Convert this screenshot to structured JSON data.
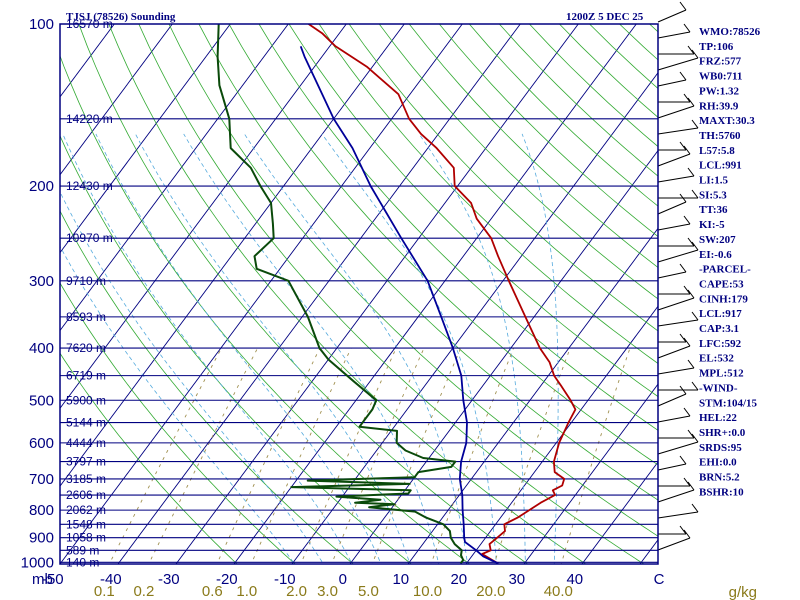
{
  "header": {
    "station": "TJSJ (78526) Sounding",
    "time": "1200Z  5 DEC 25"
  },
  "chart_data": {
    "type": "line",
    "chart_kind": "Skew-T log-P",
    "pressure_unit": "mb",
    "mixing_ratio_unit": "g/kg",
    "pressure_levels": [
      100,
      200,
      300,
      400,
      500,
      600,
      700,
      800,
      900,
      1000
    ],
    "temperature_ticks": [
      -50,
      -40,
      -30,
      -20,
      -10,
      0,
      10,
      20,
      30,
      40
    ],
    "temperature_end_label": "C",
    "mixing_ratio_ticks": [
      "0.1",
      "0.2",
      "0.6",
      "1.0",
      "2.0",
      "3.0",
      "5.0",
      "10.0",
      "20.0",
      "40.0"
    ],
    "height_labels": [
      {
        "p": 100,
        "label": "16570 m"
      },
      {
        "p": 150,
        "label": "14220 m"
      },
      {
        "p": 200,
        "label": "12430 m"
      },
      {
        "p": 250,
        "label": "10970 m"
      },
      {
        "p": 300,
        "label": "9710 m"
      },
      {
        "p": 350,
        "label": "8593 m"
      },
      {
        "p": 400,
        "label": "7620 m"
      },
      {
        "p": 450,
        "label": "6719 m"
      },
      {
        "p": 500,
        "label": "5900 m"
      },
      {
        "p": 550,
        "label": "5144 m"
      },
      {
        "p": 600,
        "label": "4444 m"
      },
      {
        "p": 650,
        "label": "3797 m"
      },
      {
        "p": 700,
        "label": "3185 m"
      },
      {
        "p": 750,
        "label": "2606 m"
      },
      {
        "p": 800,
        "label": "2062 m"
      },
      {
        "p": 850,
        "label": "1548 m"
      },
      {
        "p": 900,
        "label": "1058 m"
      },
      {
        "p": 950,
        "label": "589 m"
      },
      {
        "p": 1000,
        "label": "140 m"
      }
    ],
    "series": [
      {
        "role": "temperature",
        "color": "#b00000",
        "points": [
          {
            "p": 1005,
            "t": 25.5
          },
          {
            "p": 990,
            "t": 24.0
          },
          {
            "p": 965,
            "t": 21.5
          },
          {
            "p": 950,
            "t": 22.5
          },
          {
            "p": 925,
            "t": 21.5
          },
          {
            "p": 900,
            "t": 22.0
          },
          {
            "p": 875,
            "t": 22.5
          },
          {
            "p": 850,
            "t": 21.5
          },
          {
            "p": 825,
            "t": 23.0
          },
          {
            "p": 800,
            "t": 24.0
          },
          {
            "p": 775,
            "t": 25.0
          },
          {
            "p": 750,
            "t": 26.5
          },
          {
            "p": 735,
            "t": 25.5
          },
          {
            "p": 720,
            "t": 26.5
          },
          {
            "p": 700,
            "t": 26.0
          },
          {
            "p": 680,
            "t": 23.5
          },
          {
            "p": 650,
            "t": 22.0
          },
          {
            "p": 600,
            "t": 20.5
          },
          {
            "p": 550,
            "t": 19.5
          },
          {
            "p": 520,
            "t": 19.0
          },
          {
            "p": 500,
            "t": 17.0
          },
          {
            "p": 470,
            "t": 13.5
          },
          {
            "p": 450,
            "t": 11.0
          },
          {
            "p": 425,
            "t": 8.5
          },
          {
            "p": 400,
            "t": 5.0
          },
          {
            "p": 350,
            "t": -1.5
          },
          {
            "p": 300,
            "t": -9.0
          },
          {
            "p": 270,
            "t": -14.0
          },
          {
            "p": 250,
            "t": -17.5
          },
          {
            "p": 230,
            "t": -22.5
          },
          {
            "p": 215,
            "t": -25.5
          },
          {
            "p": 200,
            "t": -30.5
          },
          {
            "p": 185,
            "t": -33.0
          },
          {
            "p": 170,
            "t": -38.5
          },
          {
            "p": 160,
            "t": -43.0
          },
          {
            "p": 150,
            "t": -47.0
          },
          {
            "p": 135,
            "t": -52.0
          },
          {
            "p": 120,
            "t": -61.0
          },
          {
            "p": 110,
            "t": -69.0
          },
          {
            "p": 104,
            "t": -73.0
          },
          {
            "p": 100,
            "t": -76.5
          }
        ]
      },
      {
        "role": "dewpoint",
        "color": "#0a4a0a",
        "points": [
          {
            "p": 1005,
            "t": 19.0
          },
          {
            "p": 990,
            "t": 19.0
          },
          {
            "p": 970,
            "t": 18.0
          },
          {
            "p": 950,
            "t": 17.5
          },
          {
            "p": 925,
            "t": 15.5
          },
          {
            "p": 900,
            "t": 14.0
          },
          {
            "p": 875,
            "t": 13.0
          },
          {
            "p": 850,
            "t": 11.0
          },
          {
            "p": 825,
            "t": 7.0
          },
          {
            "p": 805,
            "t": 4.5
          },
          {
            "p": 790,
            "t": -4.0
          },
          {
            "p": 780,
            "t": 0.0
          },
          {
            "p": 775,
            "t": -7.0
          },
          {
            "p": 765,
            "t": -3.0
          },
          {
            "p": 755,
            "t": -11.0
          },
          {
            "p": 745,
            "t": 1.0
          },
          {
            "p": 735,
            "t": 1.0
          },
          {
            "p": 725,
            "t": -20.0
          },
          {
            "p": 715,
            "t": 0.0
          },
          {
            "p": 705,
            "t": -18.0
          },
          {
            "p": 695,
            "t": 0.0
          },
          {
            "p": 680,
            "t": 0.0
          },
          {
            "p": 665,
            "t": 5.0
          },
          {
            "p": 650,
            "t": 5.0
          },
          {
            "p": 640,
            "t": -1.0
          },
          {
            "p": 620,
            "t": -5.0
          },
          {
            "p": 600,
            "t": -7.5
          },
          {
            "p": 570,
            "t": -9.0
          },
          {
            "p": 560,
            "t": -16.0
          },
          {
            "p": 520,
            "t": -16.0
          },
          {
            "p": 500,
            "t": -16.5
          },
          {
            "p": 460,
            "t": -23.0
          },
          {
            "p": 420,
            "t": -30.0
          },
          {
            "p": 400,
            "t": -33.0
          },
          {
            "p": 350,
            "t": -39.0
          },
          {
            "p": 300,
            "t": -47.0
          },
          {
            "p": 285,
            "t": -54.0
          },
          {
            "p": 270,
            "t": -56.0
          },
          {
            "p": 250,
            "t": -55.0
          },
          {
            "p": 235,
            "t": -57.0
          },
          {
            "p": 215,
            "t": -60.0
          },
          {
            "p": 200,
            "t": -64.0
          },
          {
            "p": 185,
            "t": -68.0
          },
          {
            "p": 170,
            "t": -74.0
          },
          {
            "p": 150,
            "t": -78.0
          },
          {
            "p": 130,
            "t": -84.0
          },
          {
            "p": 115,
            "t": -88.0
          },
          {
            "p": 100,
            "t": -92.0
          }
        ]
      },
      {
        "role": "parcel",
        "color": "#000099",
        "points": [
          {
            "p": 1005,
            "t": 25.5
          },
          {
            "p": 975,
            "t": 22.0
          },
          {
            "p": 950,
            "t": 20.0
          },
          {
            "p": 917,
            "t": 17.0
          },
          {
            "p": 900,
            "t": 16.3
          },
          {
            "p": 850,
            "t": 14.5
          },
          {
            "p": 800,
            "t": 12.5
          },
          {
            "p": 750,
            "t": 10.5
          },
          {
            "p": 700,
            "t": 8.0
          },
          {
            "p": 650,
            "t": 6.0
          },
          {
            "p": 600,
            "t": 4.5
          },
          {
            "p": 550,
            "t": 2.0
          },
          {
            "p": 500,
            "t": -1.5
          },
          {
            "p": 450,
            "t": -5.0
          },
          {
            "p": 400,
            "t": -10.0
          },
          {
            "p": 350,
            "t": -16.0
          },
          {
            "p": 300,
            "t": -23.0
          },
          {
            "p": 250,
            "t": -33.0
          },
          {
            "p": 200,
            "t": -45.0
          },
          {
            "p": 170,
            "t": -53.0
          },
          {
            "p": 150,
            "t": -60.0
          },
          {
            "p": 130,
            "t": -67.0
          },
          {
            "p": 115,
            "t": -73.0
          },
          {
            "p": 110,
            "t": -75.0
          }
        ]
      }
    ],
    "indices": [
      "WMO:78526",
      "TP:106",
      "FRZ:577",
      "WB0:711",
      "PW:1.32",
      "RH:39.9",
      "MAXT:30.3",
      "TH:5760",
      "L57:5.8",
      "LCL:991",
      "LI:1.5",
      "SI:5.3",
      "TT:36",
      "KI:-5",
      "SW:207",
      "EI:-0.6",
      "-PARCEL-",
      "CAPE:53",
      "CINH:179",
      "LCL:917",
      "CAP:3.1",
      "LFC:592",
      "EL:532",
      "MPL:512",
      "-WIND-",
      "STM:104/15",
      "HEL:22",
      "SHR+:0.0",
      "SRDS:95",
      "EHI:0.0",
      "BRN:5.2",
      "BSHR:10"
    ]
  },
  "colors": {
    "frame": "#000080",
    "isobar": "#000080",
    "isotherm": "#000080",
    "dry_adiabat": "#33aa33",
    "moist_adiabat": "#55aadd",
    "mixing_ratio": "#a09050",
    "wind_barb": "#000000"
  }
}
